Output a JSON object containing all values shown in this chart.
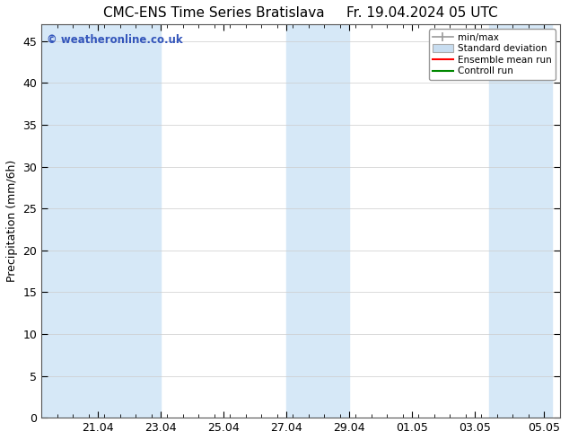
{
  "title_left": "CMC-ENS Time Series Bratislava",
  "title_right": "Fr. 19.04.2024 05 UTC",
  "ylabel": "Precipitation (mm/6h)",
  "watermark": "© weatheronline.co.uk",
  "background_color": "#ffffff",
  "plot_bg_color": "#ffffff",
  "shaded_band_color": "#d6e8f7",
  "ylim": [
    0,
    47
  ],
  "yticks": [
    0,
    5,
    10,
    15,
    20,
    25,
    30,
    35,
    40,
    45
  ],
  "xlim": [
    19.208,
    35.458
  ],
  "shaded_regions": [
    [
      19.208,
      21.0
    ],
    [
      21.0,
      23.0
    ],
    [
      27.0,
      29.0
    ],
    [
      33.458,
      35.458
    ]
  ],
  "xtick_labels": [
    "21.04",
    "23.04",
    "25.04",
    "27.04",
    "29.04",
    "01.05",
    "03.05",
    "05.05"
  ],
  "xtick_positions": [
    21.0,
    23.0,
    25.0,
    27.0,
    29.0,
    31.0,
    33.0,
    35.208
  ],
  "legend_labels": [
    "min/max",
    "Standard deviation",
    "Ensemble mean run",
    "Controll run"
  ],
  "title_fontsize": 11,
  "label_fontsize": 9,
  "tick_fontsize": 9,
  "watermark_color": "#3355bb",
  "minmax_color": "#999999",
  "std_face_color": "#c8ddf0",
  "std_edge_color": "#aaaaaa",
  "mean_color": "#ff0000",
  "ctrl_color": "#008800"
}
